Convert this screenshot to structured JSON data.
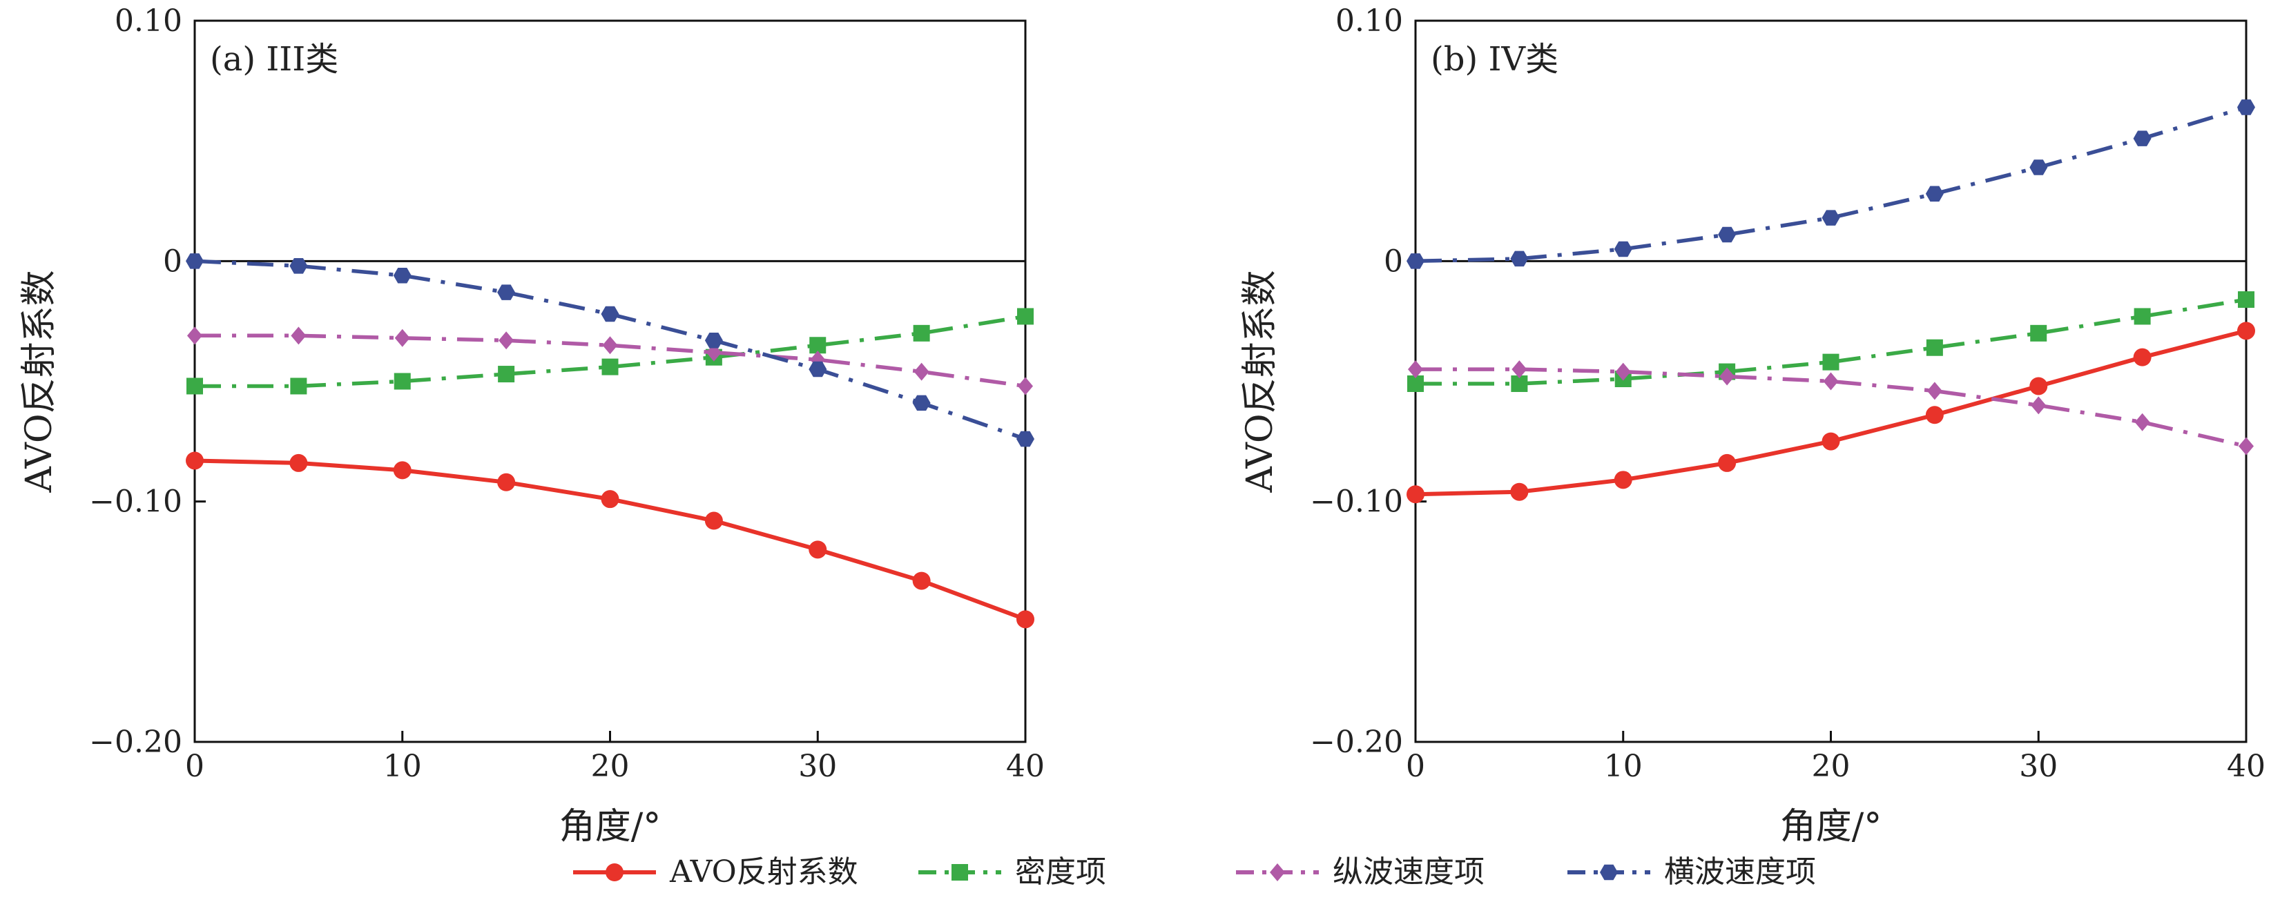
{
  "chart_data": [
    {
      "type": "line",
      "panel_label": "(a) III类",
      "xlabel": "角度/°",
      "ylabel": "AVO反射系数",
      "x": [
        0,
        5,
        10,
        15,
        20,
        25,
        30,
        35,
        40
      ],
      "xlim": [
        0,
        40
      ],
      "ylim": [
        -0.2,
        0.1
      ],
      "xticks": [
        "0",
        "10",
        "20",
        "30",
        "40"
      ],
      "yticks": [
        "0.10",
        "0",
        "−0.10",
        "−0.20"
      ],
      "zero_line": true,
      "series": [
        {
          "name": "AVO反射系数",
          "values": [
            -0.083,
            -0.084,
            -0.087,
            -0.092,
            -0.099,
            -0.108,
            -0.12,
            -0.133,
            -0.149
          ]
        },
        {
          "name": "密度项",
          "values": [
            -0.052,
            -0.052,
            -0.05,
            -0.047,
            -0.044,
            -0.04,
            -0.035,
            -0.03,
            -0.023
          ]
        },
        {
          "name": "纵波速度项",
          "values": [
            -0.031,
            -0.031,
            -0.032,
            -0.033,
            -0.035,
            -0.038,
            -0.041,
            -0.046,
            -0.052
          ]
        },
        {
          "name": "横波速度项",
          "values": [
            0.0,
            -0.002,
            -0.006,
            -0.013,
            -0.022,
            -0.033,
            -0.045,
            -0.059,
            -0.074
          ]
        }
      ]
    },
    {
      "type": "line",
      "panel_label": "(b) IV类",
      "xlabel": "角度/°",
      "ylabel": "AVO反射系数",
      "x": [
        0,
        5,
        10,
        15,
        20,
        25,
        30,
        35,
        40
      ],
      "xlim": [
        0,
        40
      ],
      "ylim": [
        -0.2,
        0.1
      ],
      "xticks": [
        "0",
        "10",
        "20",
        "30",
        "40"
      ],
      "yticks": [
        "0.10",
        "0",
        "−0.10",
        "−0.20"
      ],
      "zero_line": true,
      "series": [
        {
          "name": "AVO反射系数",
          "values": [
            -0.097,
            -0.096,
            -0.091,
            -0.084,
            -0.075,
            -0.064,
            -0.052,
            -0.04,
            -0.029
          ]
        },
        {
          "name": "密度项",
          "values": [
            -0.051,
            -0.051,
            -0.049,
            -0.046,
            -0.042,
            -0.036,
            -0.03,
            -0.023,
            -0.016
          ]
        },
        {
          "name": "纵波速度项",
          "values": [
            -0.045,
            -0.045,
            -0.046,
            -0.048,
            -0.05,
            -0.054,
            -0.06,
            -0.067,
            -0.077
          ]
        },
        {
          "name": "横波速度项",
          "values": [
            0.0,
            0.001,
            0.005,
            0.011,
            0.018,
            0.028,
            0.039,
            0.051,
            0.064
          ]
        }
      ]
    }
  ],
  "style": {
    "series_colors": [
      "#e8332a",
      "#3aaa46",
      "#b05aa6",
      "#3a4e96"
    ],
    "series_dash": [
      "solid",
      "dash-dot",
      "dash-dot",
      "dash-dot"
    ],
    "series_markers": [
      "circle",
      "square",
      "diamond",
      "hexagon"
    ]
  },
  "legend": {
    "placement": "bottom-center",
    "items": [
      "AVO反射系数",
      "密度项",
      "纵波速度项",
      "横波速度项"
    ]
  }
}
